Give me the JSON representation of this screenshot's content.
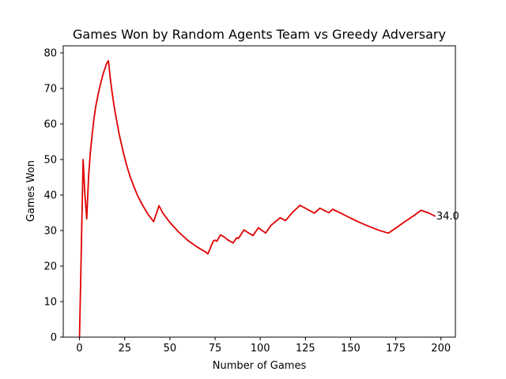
{
  "chart_data": {
    "type": "line",
    "title": "Games Won by Random Agents Team vs Greedy Adversary",
    "xlabel": "Number of Games",
    "ylabel": "Games Won",
    "xlim": [
      -9,
      208
    ],
    "ylim": [
      0,
      82
    ],
    "xticks": [
      0,
      25,
      50,
      75,
      100,
      125,
      150,
      175,
      200
    ],
    "yticks": [
      0,
      10,
      20,
      30,
      40,
      50,
      60,
      70,
      80
    ],
    "grid": false,
    "series": [
      {
        "color": "#e00000",
        "points": [
          [
            0,
            0
          ],
          [
            1,
            25
          ],
          [
            2,
            50
          ],
          [
            3,
            40
          ],
          [
            4,
            33.3
          ],
          [
            5,
            45
          ],
          [
            6,
            52
          ],
          [
            7,
            57
          ],
          [
            8,
            61.5
          ],
          [
            9,
            65
          ],
          [
            10,
            67.5
          ],
          [
            11,
            70
          ],
          [
            12,
            72
          ],
          [
            13,
            74
          ],
          [
            14,
            75.5
          ],
          [
            15,
            77
          ],
          [
            16,
            77.8
          ],
          [
            17,
            73
          ],
          [
            18,
            69
          ],
          [
            19,
            65.5
          ],
          [
            20,
            62.5
          ],
          [
            22,
            57
          ],
          [
            24,
            52.5
          ],
          [
            26,
            48.5
          ],
          [
            28,
            45.2
          ],
          [
            30,
            42.5
          ],
          [
            32,
            40
          ],
          [
            34,
            38
          ],
          [
            36,
            36.2
          ],
          [
            38,
            34.5
          ],
          [
            40,
            33.2
          ],
          [
            41,
            32.5
          ],
          [
            44,
            37
          ],
          [
            46,
            35
          ],
          [
            50,
            32.3
          ],
          [
            55,
            29.5
          ],
          [
            60,
            27.2
          ],
          [
            65,
            25.4
          ],
          [
            70,
            23.9
          ],
          [
            71,
            23.4
          ],
          [
            74,
            27
          ],
          [
            75,
            27.3
          ],
          [
            76,
            27
          ],
          [
            78,
            28.8
          ],
          [
            80,
            28.2
          ],
          [
            82,
            27.4
          ],
          [
            85,
            26.5
          ],
          [
            87,
            28
          ],
          [
            88,
            27.8
          ],
          [
            91,
            30.2
          ],
          [
            93,
            29.5
          ],
          [
            96,
            28.6
          ],
          [
            99,
            30.8
          ],
          [
            100,
            30.4
          ],
          [
            103,
            29.3
          ],
          [
            106,
            31.5
          ],
          [
            111,
            33.6
          ],
          [
            114,
            32.8
          ],
          [
            118,
            35.2
          ],
          [
            122,
            37.1
          ],
          [
            126,
            36
          ],
          [
            130,
            34.9
          ],
          [
            133,
            36.3
          ],
          [
            135,
            35.8
          ],
          [
            138,
            35
          ],
          [
            140,
            36
          ],
          [
            145,
            34.8
          ],
          [
            150,
            33.5
          ],
          [
            155,
            32.3
          ],
          [
            160,
            31.2
          ],
          [
            165,
            30.2
          ],
          [
            170,
            29.4
          ],
          [
            171,
            29.3
          ],
          [
            175,
            30.7
          ],
          [
            180,
            32.5
          ],
          [
            185,
            34.2
          ],
          [
            189,
            35.7
          ],
          [
            193,
            35
          ],
          [
            197,
            34
          ]
        ]
      }
    ],
    "annotations": [
      {
        "text": "34.0",
        "x": 197,
        "y": 34
      }
    ]
  }
}
